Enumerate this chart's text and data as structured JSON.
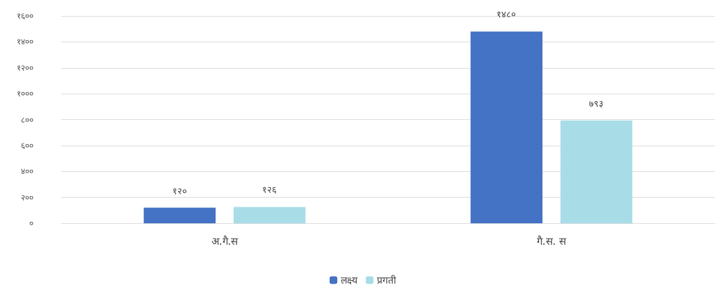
{
  "chart_data": {
    "type": "bar",
    "categories": [
      "अ.गै.स",
      "गै.स. स"
    ],
    "series": [
      {
        "name": "लक्ष्य",
        "color": "#4472c4",
        "values": [
          120,
          1480
        ],
        "value_labels": [
          "१२०",
          "१४८०"
        ]
      },
      {
        "name": "प्रगती",
        "color": "#a8dde8",
        "values": [
          126,
          793
        ],
        "value_labels": [
          "१२६",
          "७९३"
        ]
      }
    ],
    "ylim": [
      0,
      1600
    ],
    "yticks": [
      {
        "value": 0,
        "label": "०"
      },
      {
        "value": 200,
        "label": "२००"
      },
      {
        "value": 400,
        "label": "४००"
      },
      {
        "value": 600,
        "label": "६००"
      },
      {
        "value": 800,
        "label": "८००"
      },
      {
        "value": 1000,
        "label": "१०००"
      },
      {
        "value": 1200,
        "label": "१२००"
      },
      {
        "value": 1400,
        "label": "१४००"
      },
      {
        "value": 1600,
        "label": "१६००"
      }
    ],
    "grid": "y",
    "legend": "bottom"
  }
}
